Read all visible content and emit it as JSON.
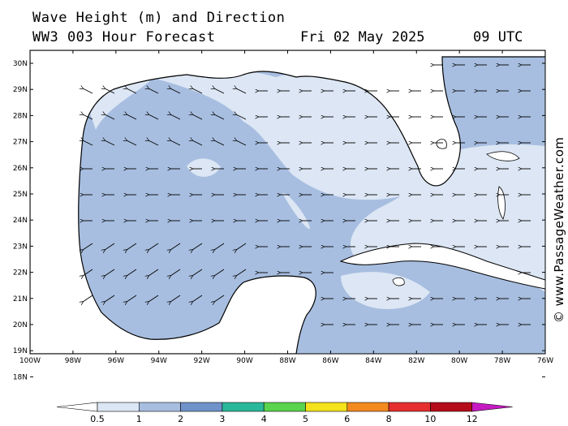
{
  "header": {
    "title_line1": "Wave Height (m) and Direction",
    "title_line2": "WW3 003 Hour Forecast",
    "date": "Fri 02 May 2025",
    "time": "09 UTC"
  },
  "credit": "© www.PassageWeather.com",
  "axes": {
    "lat_labels": [
      "30N",
      "29N",
      "28N",
      "27N",
      "26N",
      "25N",
      "24N",
      "23N",
      "22N",
      "21N",
      "20N",
      "19N",
      "18N"
    ],
    "lon_labels": [
      "100W",
      "98W",
      "96W",
      "94W",
      "92W",
      "90W",
      "88W",
      "86W",
      "84W",
      "82W",
      "80W",
      "78W",
      "76W"
    ]
  },
  "legend": {
    "bins": [
      {
        "color": "#dce6f4"
      },
      {
        "color": "#a7bee0"
      },
      {
        "color": "#6f93c9"
      },
      {
        "color": "#2ab89a"
      },
      {
        "color": "#5ad34e"
      },
      {
        "color": "#f3e21c"
      },
      {
        "color": "#f28a1f"
      },
      {
        "color": "#e52f2f"
      },
      {
        "color": "#b50c1a"
      },
      {
        "color": "#c51ac1"
      }
    ],
    "tick_labels": [
      "0.5",
      "1",
      "2",
      "3",
      "4",
      "5",
      "6",
      "8",
      "10",
      "12"
    ]
  },
  "map": {
    "land_color": "#ffffff",
    "sea_low_color": "#dce6f4",
    "sea_mid_color": "#a7bee0",
    "wave_direction": "west"
  }
}
